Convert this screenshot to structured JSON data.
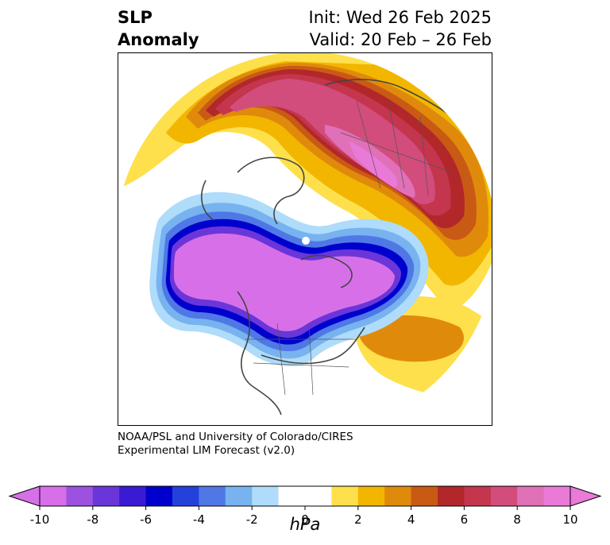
{
  "title": {
    "left_line1": "SLP",
    "left_line2": "Anomaly",
    "right_line1": "Init: Wed 26 Feb 2025",
    "right_line2": "Valid: 20 Feb – 26 Feb"
  },
  "credit": {
    "line1": "NOAA/PSL and University of Colorado/CIRES",
    "line2": "Experimental LIM Forecast (v2.0)"
  },
  "colorbar": {
    "unit": "hPa",
    "ticks": [
      "-10",
      "-8",
      "-6",
      "-4",
      "-2",
      "0",
      "2",
      "4",
      "6",
      "8",
      "10"
    ],
    "colors": [
      "#d770e8",
      "#9c52de",
      "#6a36d9",
      "#3a1ad2",
      "#0000cd",
      "#2441dc",
      "#4f78e6",
      "#78b3f0",
      "#aedcfa",
      "#ffffff",
      "#ffffff",
      "#fde04c",
      "#f2b600",
      "#e08a0c",
      "#c95a14",
      "#b2272a",
      "#c4354e",
      "#d24d7c",
      "#e070b8",
      "#ea7ad8"
    ],
    "extend_low_color": "#d770e8",
    "extend_high_color": "#ea7ad8"
  },
  "map": {
    "projection": "north-polar-stereographic",
    "pole_marker": "white dot",
    "features": [
      "coastlines",
      "country borders",
      "state/province borders"
    ]
  }
}
